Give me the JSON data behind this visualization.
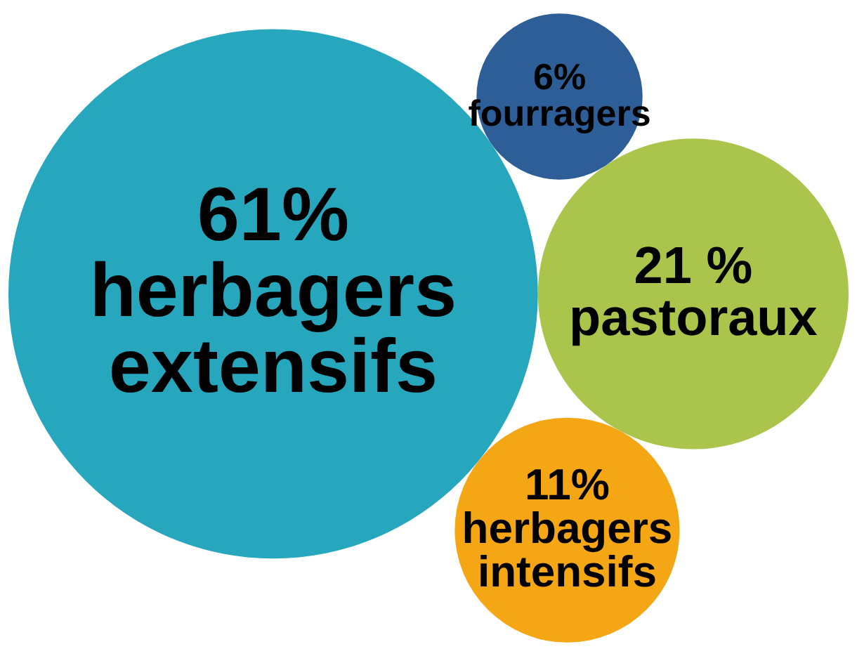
{
  "chart_data": {
    "type": "other",
    "categories": [
      "herbagers extensifs",
      "pastoraux",
      "fourragers",
      "herbagers intensifs"
    ],
    "values": [
      61,
      21,
      6,
      11
    ],
    "value_labels": [
      "61%",
      "21 %",
      "6%",
      "11%"
    ],
    "colors": [
      "#27a7bd",
      "#abc54c",
      "#2e5e98",
      "#f5a614"
    ]
  }
}
